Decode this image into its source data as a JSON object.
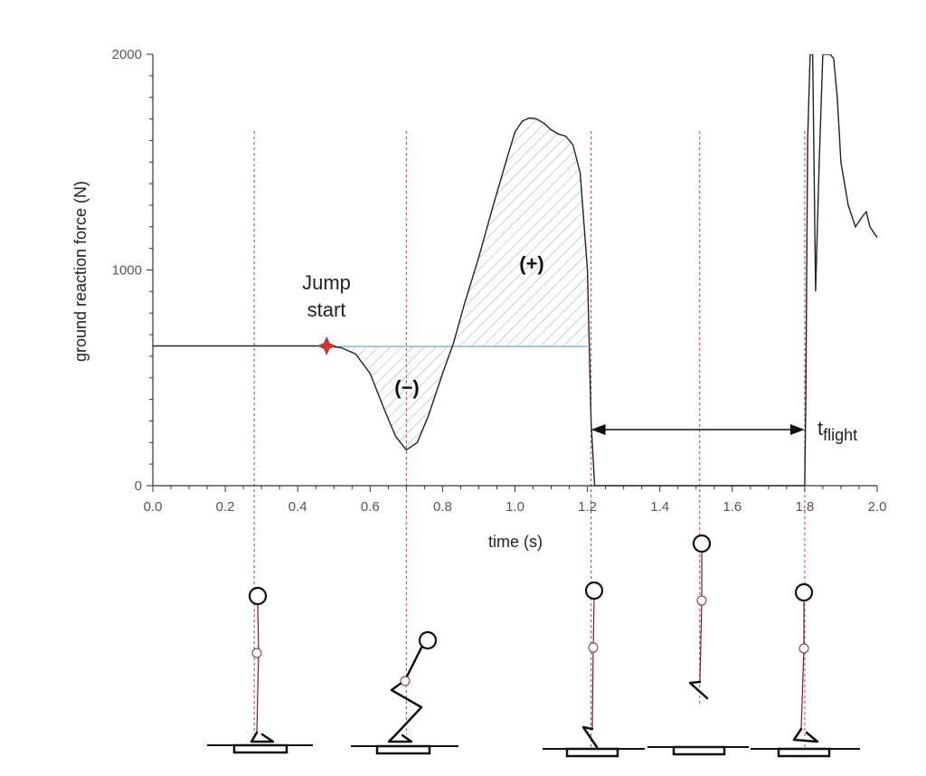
{
  "chart_data": {
    "type": "line",
    "title": "",
    "xlabel": "time (s)",
    "ylabel": "ground reaction force (N)",
    "xlim": [
      0.0,
      2.0
    ],
    "ylim": [
      0,
      2000
    ],
    "x_ticks": [
      0.0,
      0.2,
      0.4,
      0.6,
      0.8,
      1.0,
      1.2,
      1.4,
      1.6,
      1.8,
      2.0
    ],
    "x_tick_labels": [
      "0.0",
      "0.2",
      "0.4",
      "0.6",
      "0.8",
      "1.0",
      "1.2",
      "1.4",
      "1.6",
      "1.8",
      "2.0"
    ],
    "y_ticks": [
      0,
      1000,
      2000
    ],
    "y_tick_labels": [
      "0",
      "1000",
      "2000"
    ],
    "grid": false,
    "body_weight": 645,
    "series": [
      {
        "x": [
          0.0,
          0.1,
          0.2,
          0.3,
          0.4,
          0.48,
          0.52,
          0.56,
          0.6,
          0.64,
          0.67,
          0.7,
          0.73,
          0.76,
          0.8,
          0.83,
          0.86,
          0.9,
          0.94,
          0.98,
          1.0,
          1.02,
          1.04,
          1.06,
          1.08,
          1.1,
          1.12,
          1.14,
          1.16,
          1.18,
          1.2,
          1.21,
          1.22,
          1.8,
          1.803,
          1.808,
          1.815,
          1.822,
          1.83,
          1.84,
          1.85,
          1.86,
          1.87,
          1.88,
          1.89,
          1.9,
          1.92,
          1.94,
          1.96,
          1.97,
          1.98,
          2.0
        ],
        "y": [
          648,
          648,
          648,
          648,
          648,
          648,
          640,
          610,
          520,
          350,
          230,
          165,
          200,
          320,
          520,
          660,
          840,
          1060,
          1300,
          1530,
          1640,
          1690,
          1705,
          1700,
          1680,
          1650,
          1630,
          1620,
          1580,
          1450,
          1000,
          300,
          0,
          0,
          400,
          1600,
          2000,
          2000,
          900,
          1500,
          2000,
          2000,
          2000,
          1980,
          1800,
          1500,
          1300,
          1200,
          1250,
          1270,
          1200,
          1150
        ]
      }
    ],
    "areas": [
      {
        "label": "(−)",
        "x_range": [
          0.48,
          0.83
        ]
      },
      {
        "label": "(+)",
        "x_range": [
          0.83,
          1.2
        ]
      }
    ],
    "marker": {
      "label_line1": "Jump",
      "label_line2": "start",
      "x": 0.48,
      "y": 648
    },
    "event_times": [
      0.28,
      0.7,
      1.21,
      1.51,
      1.8
    ],
    "flight": {
      "label_main": "t",
      "label_sub": "flight",
      "x_start": 1.21,
      "x_end": 1.8,
      "y": 260
    }
  }
}
